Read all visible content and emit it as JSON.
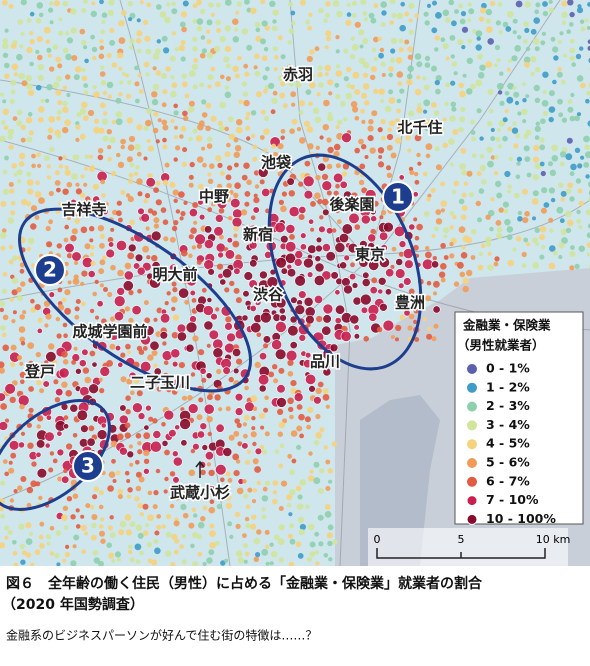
{
  "map": {
    "places": [
      {
        "label": "赤羽"
      },
      {
        "label": "北千住"
      },
      {
        "label": "池袋"
      },
      {
        "label": "中野"
      },
      {
        "label": "後楽園"
      },
      {
        "label": "吉祥寺"
      },
      {
        "label": "新宿"
      },
      {
        "label": "東京"
      },
      {
        "label": "明大前"
      },
      {
        "label": "渋谷"
      },
      {
        "label": "豊洲"
      },
      {
        "label": "成城学園前"
      },
      {
        "label": "品川"
      },
      {
        "label": "登戸"
      },
      {
        "label": "二子玉川"
      },
      {
        "label": "武蔵小杉"
      }
    ],
    "regions": [
      {
        "label": "1"
      },
      {
        "label": "2"
      },
      {
        "label": "3"
      }
    ]
  },
  "legend": {
    "title": "金融業・保険業",
    "subtitle": "（男性就業者）",
    "items": [
      {
        "label": "0 - 1%",
        "color": "#5a5fae"
      },
      {
        "label": "1 - 2%",
        "color": "#3d9cc8"
      },
      {
        "label": "2 - 3%",
        "color": "#8ecfae"
      },
      {
        "label": "3 - 4%",
        "color": "#cfe49c"
      },
      {
        "label": "4 - 5%",
        "color": "#f6d27c"
      },
      {
        "label": "5 - 6%",
        "color": "#f29a58"
      },
      {
        "label": "6 - 7%",
        "color": "#e25a40"
      },
      {
        "label": "7 - 10%",
        "color": "#c81f4e"
      },
      {
        "label": "10 - 100%",
        "color": "#8a0a2c"
      }
    ]
  },
  "scale": {
    "ticks": [
      "0",
      "5",
      "10 km"
    ]
  },
  "caption": {
    "title": [
      "図６　全年齢の働く住民（男性）に占める「金融業・保険業」就業者の割合",
      "（2020 年国勢調査）"
    ],
    "subtitle": "金融系のビジネスパーソンが好んで住む街の特徴は……？"
  }
}
